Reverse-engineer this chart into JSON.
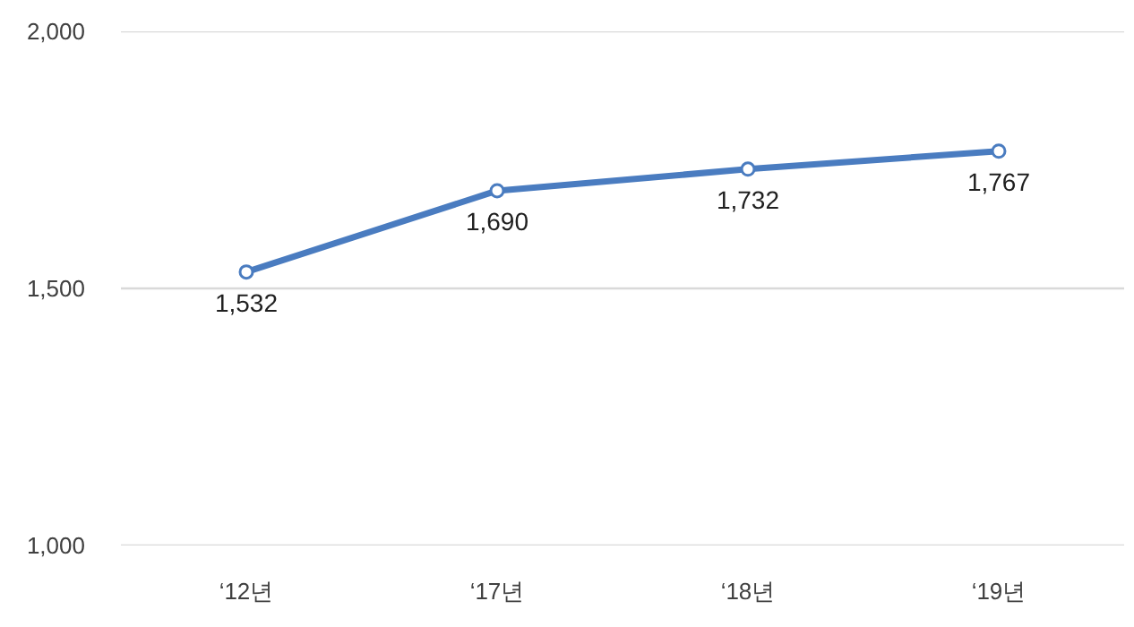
{
  "chart_data": {
    "type": "line",
    "categories": [
      "‘12년",
      "‘17년",
      "‘18년",
      "‘19년"
    ],
    "series": [
      {
        "color": "#4a7cc0",
        "values": [
          1532,
          1690,
          1732,
          1767
        ],
        "value_labels": [
          "1,532",
          "1,690",
          "1,732",
          "1,767"
        ]
      }
    ],
    "ylim": [
      1000,
      2000
    ],
    "yticks": [
      {
        "value": 1000,
        "label": "1,000"
      },
      {
        "value": 1500,
        "label": "1,500"
      },
      {
        "value": 2000,
        "label": "2,000"
      }
    ],
    "grid": "y",
    "marker": "circle"
  }
}
